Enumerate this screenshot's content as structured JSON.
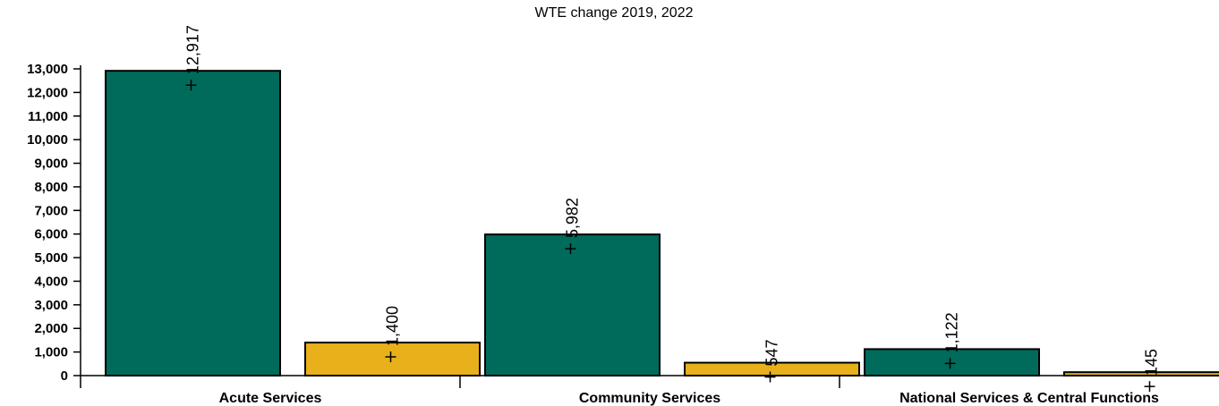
{
  "chart_data": {
    "type": "bar",
    "title": "WTE change 2019, 2022",
    "categories": [
      "Acute Services",
      "Community Services",
      "National Services & Central Functions"
    ],
    "series": [
      {
        "values": [
          12917,
          5982,
          1122
        ],
        "labels": [
          "12,917",
          "5,982",
          "1,122"
        ],
        "color": "#006b5b"
      },
      {
        "values": [
          1400,
          547,
          145
        ],
        "labels": [
          "1,400",
          "547",
          "145"
        ],
        "color": "#e8b01a"
      }
    ],
    "ylim": [
      0,
      13000
    ],
    "yticks": [
      "0",
      "1,000",
      "2,000",
      "3,000",
      "4,000",
      "5,000",
      "6,000",
      "7,000",
      "8,000",
      "9,000",
      "10,000",
      "11,000",
      "12,000",
      "13,000"
    ],
    "grid": false,
    "legend": "none"
  }
}
